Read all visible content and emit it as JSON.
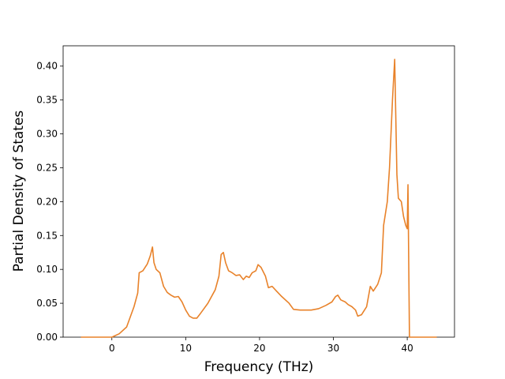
{
  "chart_data": {
    "type": "line",
    "x_label": "Frequency (THz)",
    "y_label": "Partial Density of States",
    "x": [
      -4.2,
      0,
      1,
      2,
      2.5,
      3,
      3.5,
      3.7,
      4.2,
      4.8,
      5.2,
      5.5,
      5.7,
      6,
      6.5,
      7,
      7.5,
      8,
      8.5,
      9,
      9.5,
      10,
      10.5,
      11,
      11.5,
      12,
      13,
      14,
      14.5,
      14.8,
      15.1,
      15.4,
      15.8,
      16.3,
      16.8,
      17.3,
      17.8,
      18.2,
      18.6,
      19,
      19.5,
      19.8,
      20.2,
      20.8,
      21.2,
      21.7,
      22.3,
      23,
      24,
      24.6,
      25.5,
      27,
      28,
      29,
      29.8,
      30.3,
      30.6,
      31,
      31.6,
      32,
      32.5,
      33,
      33.3,
      33.8,
      34.5,
      35,
      35.4,
      36,
      36.5,
      36.8,
      37.3,
      37.6,
      38,
      38.3,
      38.6,
      38.8,
      39.2,
      39.5,
      39.8,
      40,
      40.1,
      40.3,
      44
    ],
    "values": [
      0,
      0,
      0.005,
      0.015,
      0.03,
      0.045,
      0.065,
      0.095,
      0.098,
      0.108,
      0.12,
      0.133,
      0.11,
      0.1,
      0.095,
      0.075,
      0.066,
      0.062,
      0.059,
      0.06,
      0.052,
      0.04,
      0.031,
      0.028,
      0.028,
      0.035,
      0.05,
      0.07,
      0.09,
      0.122,
      0.125,
      0.11,
      0.098,
      0.095,
      0.091,
      0.092,
      0.085,
      0.09,
      0.088,
      0.095,
      0.098,
      0.107,
      0.103,
      0.09,
      0.073,
      0.075,
      0.068,
      0.06,
      0.05,
      0.041,
      0.04,
      0.04,
      0.042,
      0.047,
      0.052,
      0.06,
      0.062,
      0.055,
      0.052,
      0.048,
      0.045,
      0.04,
      0.031,
      0.033,
      0.045,
      0.075,
      0.068,
      0.078,
      0.095,
      0.165,
      0.2,
      0.25,
      0.35,
      0.41,
      0.24,
      0.205,
      0.2,
      0.178,
      0.165,
      0.16,
      0.225,
      0,
      0
    ],
    "color": "#e8822a",
    "xlim": [
      -6.6,
      46.4
    ],
    "xticks": [
      0,
      10,
      20,
      30,
      40
    ],
    "ylim": [
      0,
      0.43
    ],
    "yticks": [
      {
        "value": 0,
        "label": "0.00"
      },
      {
        "value": 0.05,
        "label": "0.05"
      },
      {
        "value": 0.1,
        "label": "0.10"
      },
      {
        "value": 0.15,
        "label": "0.15"
      },
      {
        "value": 0.2,
        "label": "0.20"
      },
      {
        "value": 0.25,
        "label": "0.25"
      },
      {
        "value": 0.3,
        "label": "0.30"
      },
      {
        "value": 0.35,
        "label": "0.35"
      },
      {
        "value": 0.4,
        "label": "0.40"
      }
    ]
  }
}
